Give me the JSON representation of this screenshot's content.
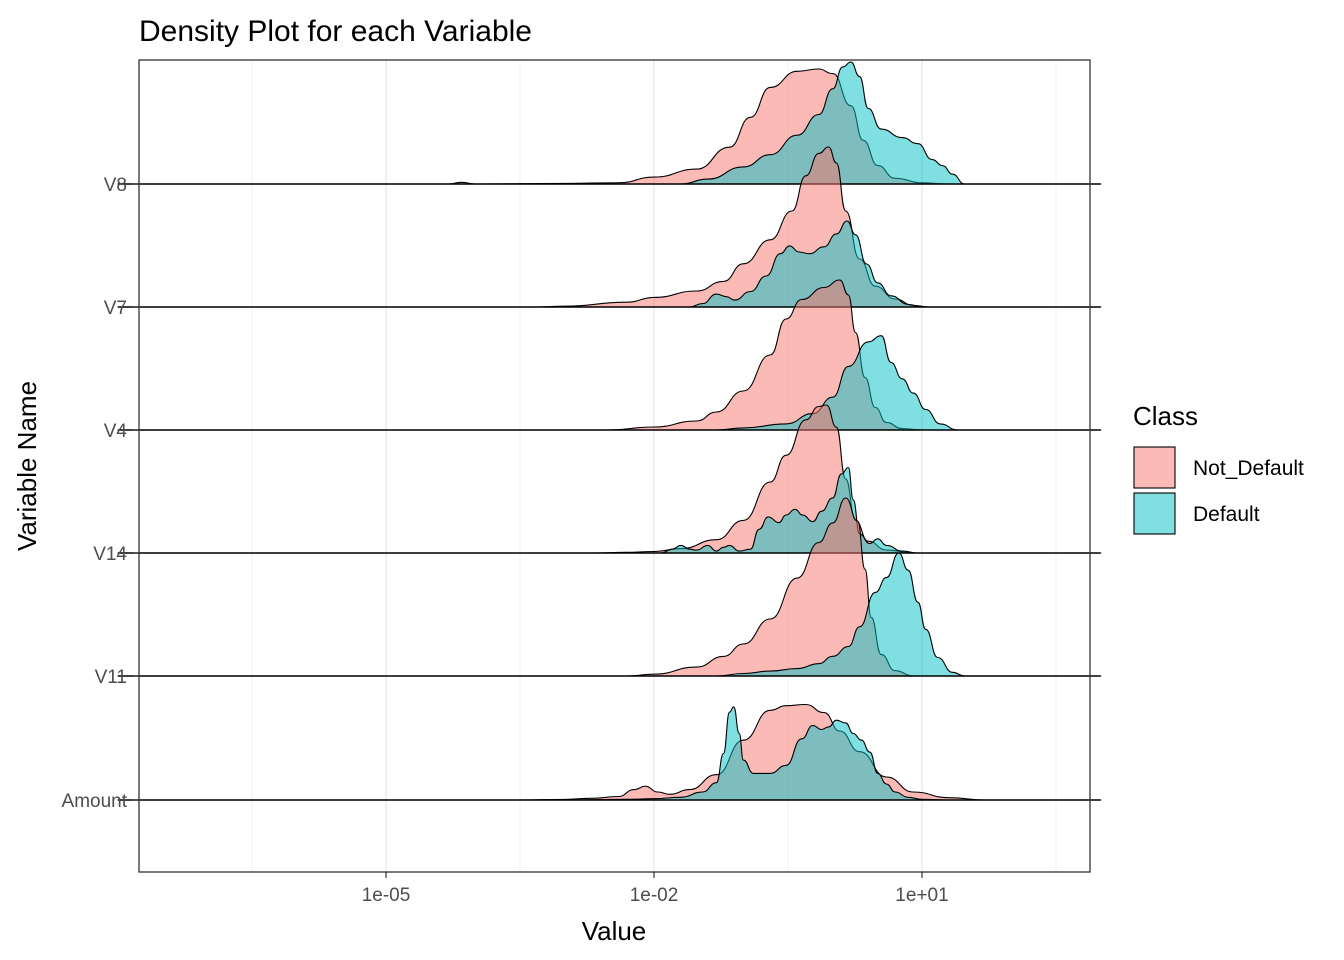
{
  "chart_data": {
    "type": "area",
    "subtype": "ridgeline-density",
    "title": "Density Plot for each Variable",
    "xlabel": "Value",
    "ylabel": "Variable Name",
    "x_scale": "log10",
    "x_ticks": [
      {
        "value": 1e-05,
        "label": "1e-05"
      },
      {
        "value": 0.01,
        "label": "1e-02"
      },
      {
        "value": 10,
        "label": "1e+01"
      }
    ],
    "categories": [
      "Amount",
      "V11",
      "V14",
      "V4",
      "V7",
      "V8"
    ],
    "grid": true,
    "legend": {
      "title": "Class",
      "position": "right",
      "entries": [
        {
          "label": "Not_Default",
          "color": "#F8766D"
        },
        {
          "label": "Default",
          "color": "#00BFC4"
        }
      ]
    },
    "fill_opacity": 0.5,
    "line_extent": [
      1e-08,
      1000
    ],
    "series": [
      {
        "name": "Not_Default",
        "color": "#F8766D",
        "curves": {
          "V8": [
            [
              1e-08,
              0
            ],
            [
              5e-05,
              0
            ],
            [
              7e-05,
              0.015
            ],
            [
              0.0001,
              0
            ],
            [
              0.001,
              0.005
            ],
            [
              0.004,
              0.01
            ],
            [
              0.01,
              0.06
            ],
            [
              0.03,
              0.13
            ],
            [
              0.07,
              0.32
            ],
            [
              0.12,
              0.58
            ],
            [
              0.2,
              0.84
            ],
            [
              0.4,
              0.98
            ],
            [
              0.7,
              1.0
            ],
            [
              1.0,
              0.96
            ],
            [
              1.6,
              0.68
            ],
            [
              2.2,
              0.38
            ],
            [
              3.2,
              0.16
            ],
            [
              5,
              0.05
            ],
            [
              10,
              0.01
            ],
            [
              20,
              0
            ],
            [
              1000,
              0
            ]
          ],
          "V7": [
            [
              1e-08,
              0
            ],
            [
              0.0005,
              0
            ],
            [
              0.001,
              0.005
            ],
            [
              0.005,
              0.03
            ],
            [
              0.01,
              0.06
            ],
            [
              0.03,
              0.1
            ],
            [
              0.06,
              0.16
            ],
            [
              0.1,
              0.27
            ],
            [
              0.2,
              0.42
            ],
            [
              0.35,
              0.6
            ],
            [
              0.5,
              0.82
            ],
            [
              0.7,
              0.96
            ],
            [
              0.9,
              1.0
            ],
            [
              1.1,
              0.9
            ],
            [
              1.4,
              0.6
            ],
            [
              2.0,
              0.3
            ],
            [
              3.0,
              0.13
            ],
            [
              5,
              0.05
            ],
            [
              8,
              0.01
            ],
            [
              12,
              0
            ],
            [
              1000,
              0
            ]
          ],
          "V4": [
            [
              1e-08,
              0
            ],
            [
              0.003,
              0
            ],
            [
              0.01,
              0.02
            ],
            [
              0.03,
              0.06
            ],
            [
              0.05,
              0.12
            ],
            [
              0.1,
              0.26
            ],
            [
              0.2,
              0.5
            ],
            [
              0.3,
              0.74
            ],
            [
              0.45,
              0.87
            ],
            [
              0.8,
              0.95
            ],
            [
              1.2,
              1.0
            ],
            [
              1.5,
              0.9
            ],
            [
              1.8,
              0.65
            ],
            [
              2.3,
              0.35
            ],
            [
              3,
              0.15
            ],
            [
              4,
              0.05
            ],
            [
              6,
              0.01
            ],
            [
              10,
              0
            ],
            [
              1000,
              0
            ]
          ],
          "V14": [
            [
              1e-08,
              0
            ],
            [
              0.002,
              0
            ],
            [
              0.005,
              0.005
            ],
            [
              0.01,
              0.01
            ],
            [
              0.02,
              0.03
            ],
            [
              0.05,
              0.09
            ],
            [
              0.1,
              0.22
            ],
            [
              0.2,
              0.48
            ],
            [
              0.3,
              0.66
            ],
            [
              0.5,
              0.9
            ],
            [
              0.7,
              0.99
            ],
            [
              0.85,
              1.0
            ],
            [
              1.1,
              0.85
            ],
            [
              1.4,
              0.5
            ],
            [
              1.8,
              0.22
            ],
            [
              2.5,
              0.08
            ],
            [
              4,
              0.02
            ],
            [
              8,
              0
            ],
            [
              1000,
              0
            ]
          ],
          "V11": [
            [
              1e-08,
              0
            ],
            [
              0.005,
              0
            ],
            [
              0.01,
              0.01
            ],
            [
              0.03,
              0.05
            ],
            [
              0.06,
              0.11
            ],
            [
              0.1,
              0.18
            ],
            [
              0.2,
              0.32
            ],
            [
              0.4,
              0.55
            ],
            [
              0.7,
              0.75
            ],
            [
              1.0,
              0.86
            ],
            [
              1.4,
              1.0
            ],
            [
              1.9,
              0.87
            ],
            [
              2.3,
              0.6
            ],
            [
              2.7,
              0.33
            ],
            [
              3.5,
              0.12
            ],
            [
              5,
              0.03
            ],
            [
              8,
              0
            ],
            [
              1000,
              0
            ]
          ],
          "V8_note": [],
          "Amount": [
            [
              1e-08,
              0
            ],
            [
              0.0003,
              0
            ],
            [
              0.001,
              0.005
            ],
            [
              0.002,
              0.015
            ],
            [
              0.004,
              0.03
            ],
            [
              0.006,
              0.09
            ],
            [
              0.008,
              0.12
            ],
            [
              0.011,
              0.07
            ],
            [
              0.015,
              0.05
            ],
            [
              0.025,
              0.09
            ],
            [
              0.05,
              0.22
            ],
            [
              0.1,
              0.52
            ],
            [
              0.2,
              0.78
            ],
            [
              0.3,
              0.82
            ],
            [
              0.5,
              0.83
            ],
            [
              0.8,
              0.76
            ],
            [
              1.2,
              0.6
            ],
            [
              2,
              0.42
            ],
            [
              4,
              0.2
            ],
            [
              8,
              0.07
            ],
            [
              20,
              0.02
            ],
            [
              50,
              0
            ],
            [
              1000,
              0
            ]
          ]
        }
      },
      {
        "name": "Default",
        "color": "#00BFC4",
        "curves": {
          "V8": [
            [
              1e-08,
              0
            ],
            [
              0.02,
              0
            ],
            [
              0.04,
              0.04
            ],
            [
              0.1,
              0.14
            ],
            [
              0.2,
              0.24
            ],
            [
              0.4,
              0.4
            ],
            [
              0.7,
              0.57
            ],
            [
              1.0,
              0.78
            ],
            [
              1.3,
              0.96
            ],
            [
              1.6,
              1.0
            ],
            [
              2.0,
              0.88
            ],
            [
              2.5,
              0.62
            ],
            [
              3.5,
              0.45
            ],
            [
              6,
              0.38
            ],
            [
              9,
              0.33
            ],
            [
              13,
              0.2
            ],
            [
              17,
              0.15
            ],
            [
              22,
              0.08
            ],
            [
              30,
              0
            ],
            [
              1000,
              0
            ]
          ],
          "V7": [
            [
              1e-08,
              0
            ],
            [
              0.025,
              0
            ],
            [
              0.035,
              0.04
            ],
            [
              0.05,
              0.15
            ],
            [
              0.065,
              0.12
            ],
            [
              0.08,
              0.08
            ],
            [
              0.12,
              0.18
            ],
            [
              0.18,
              0.36
            ],
            [
              0.26,
              0.62
            ],
            [
              0.33,
              0.71
            ],
            [
              0.42,
              0.64
            ],
            [
              0.55,
              0.62
            ],
            [
              0.8,
              0.7
            ],
            [
              1.1,
              0.85
            ],
            [
              1.45,
              1.0
            ],
            [
              1.8,
              0.84
            ],
            [
              2.4,
              0.5
            ],
            [
              3.2,
              0.28
            ],
            [
              4.5,
              0.13
            ],
            [
              7,
              0.03
            ],
            [
              10,
              0
            ],
            [
              1000,
              0
            ]
          ],
          "V4": [
            [
              1e-08,
              0
            ],
            [
              0.05,
              0
            ],
            [
              0.1,
              0.01
            ],
            [
              0.3,
              0.03
            ],
            [
              0.6,
              0.08
            ],
            [
              1.0,
              0.16
            ],
            [
              1.5,
              0.31
            ],
            [
              2.5,
              0.43
            ],
            [
              3.5,
              0.46
            ],
            [
              4.5,
              0.33
            ],
            [
              6,
              0.25
            ],
            [
              8,
              0.18
            ],
            [
              11,
              0.1
            ],
            [
              16,
              0.03
            ],
            [
              25,
              0
            ],
            [
              1000,
              0
            ]
          ],
          "V14": [
            [
              1e-08,
              0
            ],
            [
              0.012,
              0
            ],
            [
              0.016,
              0.04
            ],
            [
              0.02,
              0.08
            ],
            [
              0.025,
              0.04
            ],
            [
              0.03,
              0.03
            ],
            [
              0.04,
              0.08
            ],
            [
              0.05,
              0.02
            ],
            [
              0.06,
              0.06
            ],
            [
              0.07,
              0.08
            ],
            [
              0.09,
              0.02
            ],
            [
              0.12,
              0.04
            ],
            [
              0.15,
              0.25
            ],
            [
              0.19,
              0.38
            ],
            [
              0.25,
              0.32
            ],
            [
              0.3,
              0.4
            ],
            [
              0.38,
              0.46
            ],
            [
              0.46,
              0.4
            ],
            [
              0.6,
              0.33
            ],
            [
              0.75,
              0.44
            ],
            [
              1.0,
              0.58
            ],
            [
              1.25,
              0.83
            ],
            [
              1.5,
              0.9
            ],
            [
              1.7,
              0.56
            ],
            [
              2.0,
              0.2
            ],
            [
              2.6,
              0.1
            ],
            [
              3.2,
              0.15
            ],
            [
              4.0,
              0.08
            ],
            [
              6,
              0.02
            ],
            [
              9,
              0
            ],
            [
              1000,
              0
            ]
          ],
          "V11": [
            [
              1e-08,
              0
            ],
            [
              0.05,
              0
            ],
            [
              0.1,
              0.02
            ],
            [
              0.2,
              0.04
            ],
            [
              0.4,
              0.06
            ],
            [
              0.7,
              0.1
            ],
            [
              1.0,
              0.16
            ],
            [
              1.5,
              0.24
            ],
            [
              2.0,
              0.4
            ],
            [
              3.0,
              0.68
            ],
            [
              4.0,
              0.8
            ],
            [
              5.5,
              1.0
            ],
            [
              7,
              0.86
            ],
            [
              9,
              0.6
            ],
            [
              11,
              0.38
            ],
            [
              15,
              0.15
            ],
            [
              22,
              0.03
            ],
            [
              30,
              0
            ],
            [
              1000,
              0
            ]
          ],
          "Amount": [
            [
              1e-08,
              0
            ],
            [
              0.001,
              0
            ],
            [
              0.005,
              0.005
            ],
            [
              0.01,
              0.01
            ],
            [
              0.02,
              0.02
            ],
            [
              0.035,
              0.06
            ],
            [
              0.05,
              0.13
            ],
            [
              0.06,
              0.35
            ],
            [
              0.07,
              0.66
            ],
            [
              0.078,
              0.7
            ],
            [
              0.09,
              0.5
            ],
            [
              0.1,
              0.3
            ],
            [
              0.13,
              0.2
            ],
            [
              0.2,
              0.2
            ],
            [
              0.3,
              0.26
            ],
            [
              0.45,
              0.46
            ],
            [
              0.6,
              0.56
            ],
            [
              0.75,
              0.53
            ],
            [
              0.9,
              0.55
            ],
            [
              1.1,
              0.6
            ],
            [
              1.4,
              0.58
            ],
            [
              1.7,
              0.5
            ],
            [
              2.1,
              0.45
            ],
            [
              2.6,
              0.36
            ],
            [
              3.2,
              0.2
            ],
            [
              4,
              0.12
            ],
            [
              5,
              0.06
            ],
            [
              7,
              0.02
            ],
            [
              10,
              0.005
            ],
            [
              20,
              0
            ],
            [
              1000,
              0
            ]
          ]
        }
      }
    ],
    "peak_heights": {
      "Not_Default": {
        "V8": 115,
        "V7": 160,
        "V4": 150,
        "V14": 148,
        "V11": 178,
        "Amount": 115
      },
      "Default": {
        "V8": 122,
        "V7": 86,
        "V4": 205,
        "V14": 95,
        "V11": 123,
        "Amount": 133
      }
    }
  }
}
